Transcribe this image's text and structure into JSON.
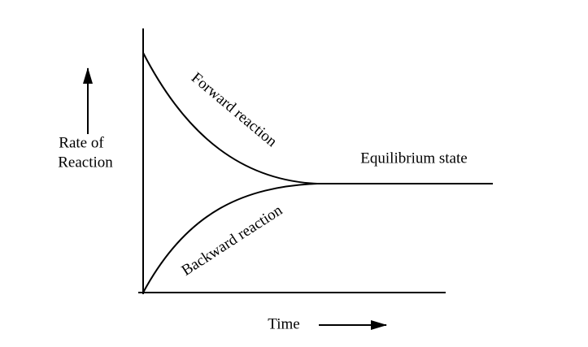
{
  "forward_label": "Forward reaction",
  "backward_label": "Backward reaction",
  "equilibrium_label": "Equilibrium state",
  "y_axis_label": [
    "Rate of",
    "Reaction"
  ],
  "x_axis_label": "Time"
}
